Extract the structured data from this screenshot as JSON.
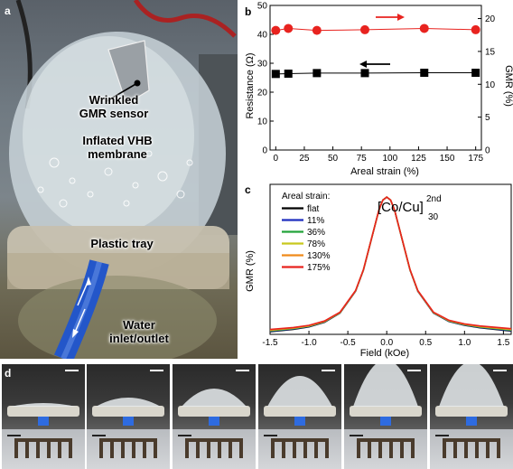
{
  "panels": {
    "a": "a",
    "b": "b",
    "c": "c",
    "d": "d"
  },
  "photo_labels": {
    "sensor_line1": "Wrinkled",
    "sensor_line2": "GMR sensor",
    "membrane_line1": "Inflated VHB",
    "membrane_line2": "membrane",
    "tray": "Plastic tray",
    "water_line1": "Water",
    "water_line2": "inlet/outlet"
  },
  "chart_data": [
    {
      "type": "scatter",
      "panel": "b",
      "xlabel": "Areal strain (%)",
      "ylabel_left": "Resistance (Ω)",
      "ylabel_right": "GMR (%)",
      "xlim": [
        -5,
        180
      ],
      "ylim_left": [
        0,
        50
      ],
      "ylim_right": [
        0,
        22
      ],
      "x_ticks": [
        0,
        25,
        50,
        75,
        100,
        125,
        150,
        175
      ],
      "y_left_ticks": [
        0,
        10,
        20,
        30,
        40,
        50
      ],
      "y_right_ticks": [
        0,
        5,
        10,
        15,
        20
      ],
      "series": [
        {
          "axis": "right",
          "marker": "circle",
          "color": "#e8231f",
          "x": [
            0,
            11,
            36,
            78,
            130,
            175
          ],
          "y": [
            18.2,
            18.5,
            18.2,
            18.3,
            18.5,
            18.3
          ]
        },
        {
          "axis": "left",
          "marker": "square",
          "color": "#000000",
          "x": [
            0,
            11,
            36,
            78,
            130,
            175
          ],
          "y": [
            26.3,
            26.4,
            26.6,
            26.6,
            26.7,
            26.7
          ]
        }
      ],
      "grid": false
    },
    {
      "type": "line",
      "panel": "c",
      "xlabel": "Field (kOe)",
      "ylabel": "GMR (%)",
      "xlim": [
        -1.5,
        1.6
      ],
      "ylim": [
        0,
        20
      ],
      "x_ticks": [
        -1.5,
        -1.0,
        -0.5,
        0.0,
        0.5,
        1.0,
        1.5
      ],
      "legend_title": "Areal strain:",
      "legend_position": "top-left",
      "annotation_main": "[Co/Cu]",
      "annotation_sub": "30",
      "annotation_sup": "2nd",
      "series": [
        {
          "name": "flat",
          "color": "#000000"
        },
        {
          "name": "11%",
          "color": "#1f2fbf"
        },
        {
          "name": "36%",
          "color": "#23a33a"
        },
        {
          "name": "78%",
          "color": "#c8c81e"
        },
        {
          "name": "130%",
          "color": "#ef8a1a"
        },
        {
          "name": "175%",
          "color": "#e8231f"
        }
      ],
      "curve_x": [
        -1.5,
        -1.2,
        -1.0,
        -0.8,
        -0.6,
        -0.4,
        -0.3,
        -0.2,
        -0.1,
        -0.05,
        0.0,
        0.05,
        0.1,
        0.2,
        0.3,
        0.4,
        0.6,
        0.8,
        1.0,
        1.2,
        1.5,
        1.6
      ],
      "curve_y": [
        0.5,
        0.8,
        1.1,
        1.7,
        2.9,
        5.8,
        8.6,
        12.6,
        16.6,
        17.9,
        18.3,
        17.9,
        16.6,
        12.6,
        8.6,
        5.8,
        2.9,
        1.8,
        1.3,
        1.0,
        0.7,
        0.6
      ]
    }
  ],
  "colors": {
    "red": "#e8231f",
    "blue_tube": "#2356c9"
  }
}
